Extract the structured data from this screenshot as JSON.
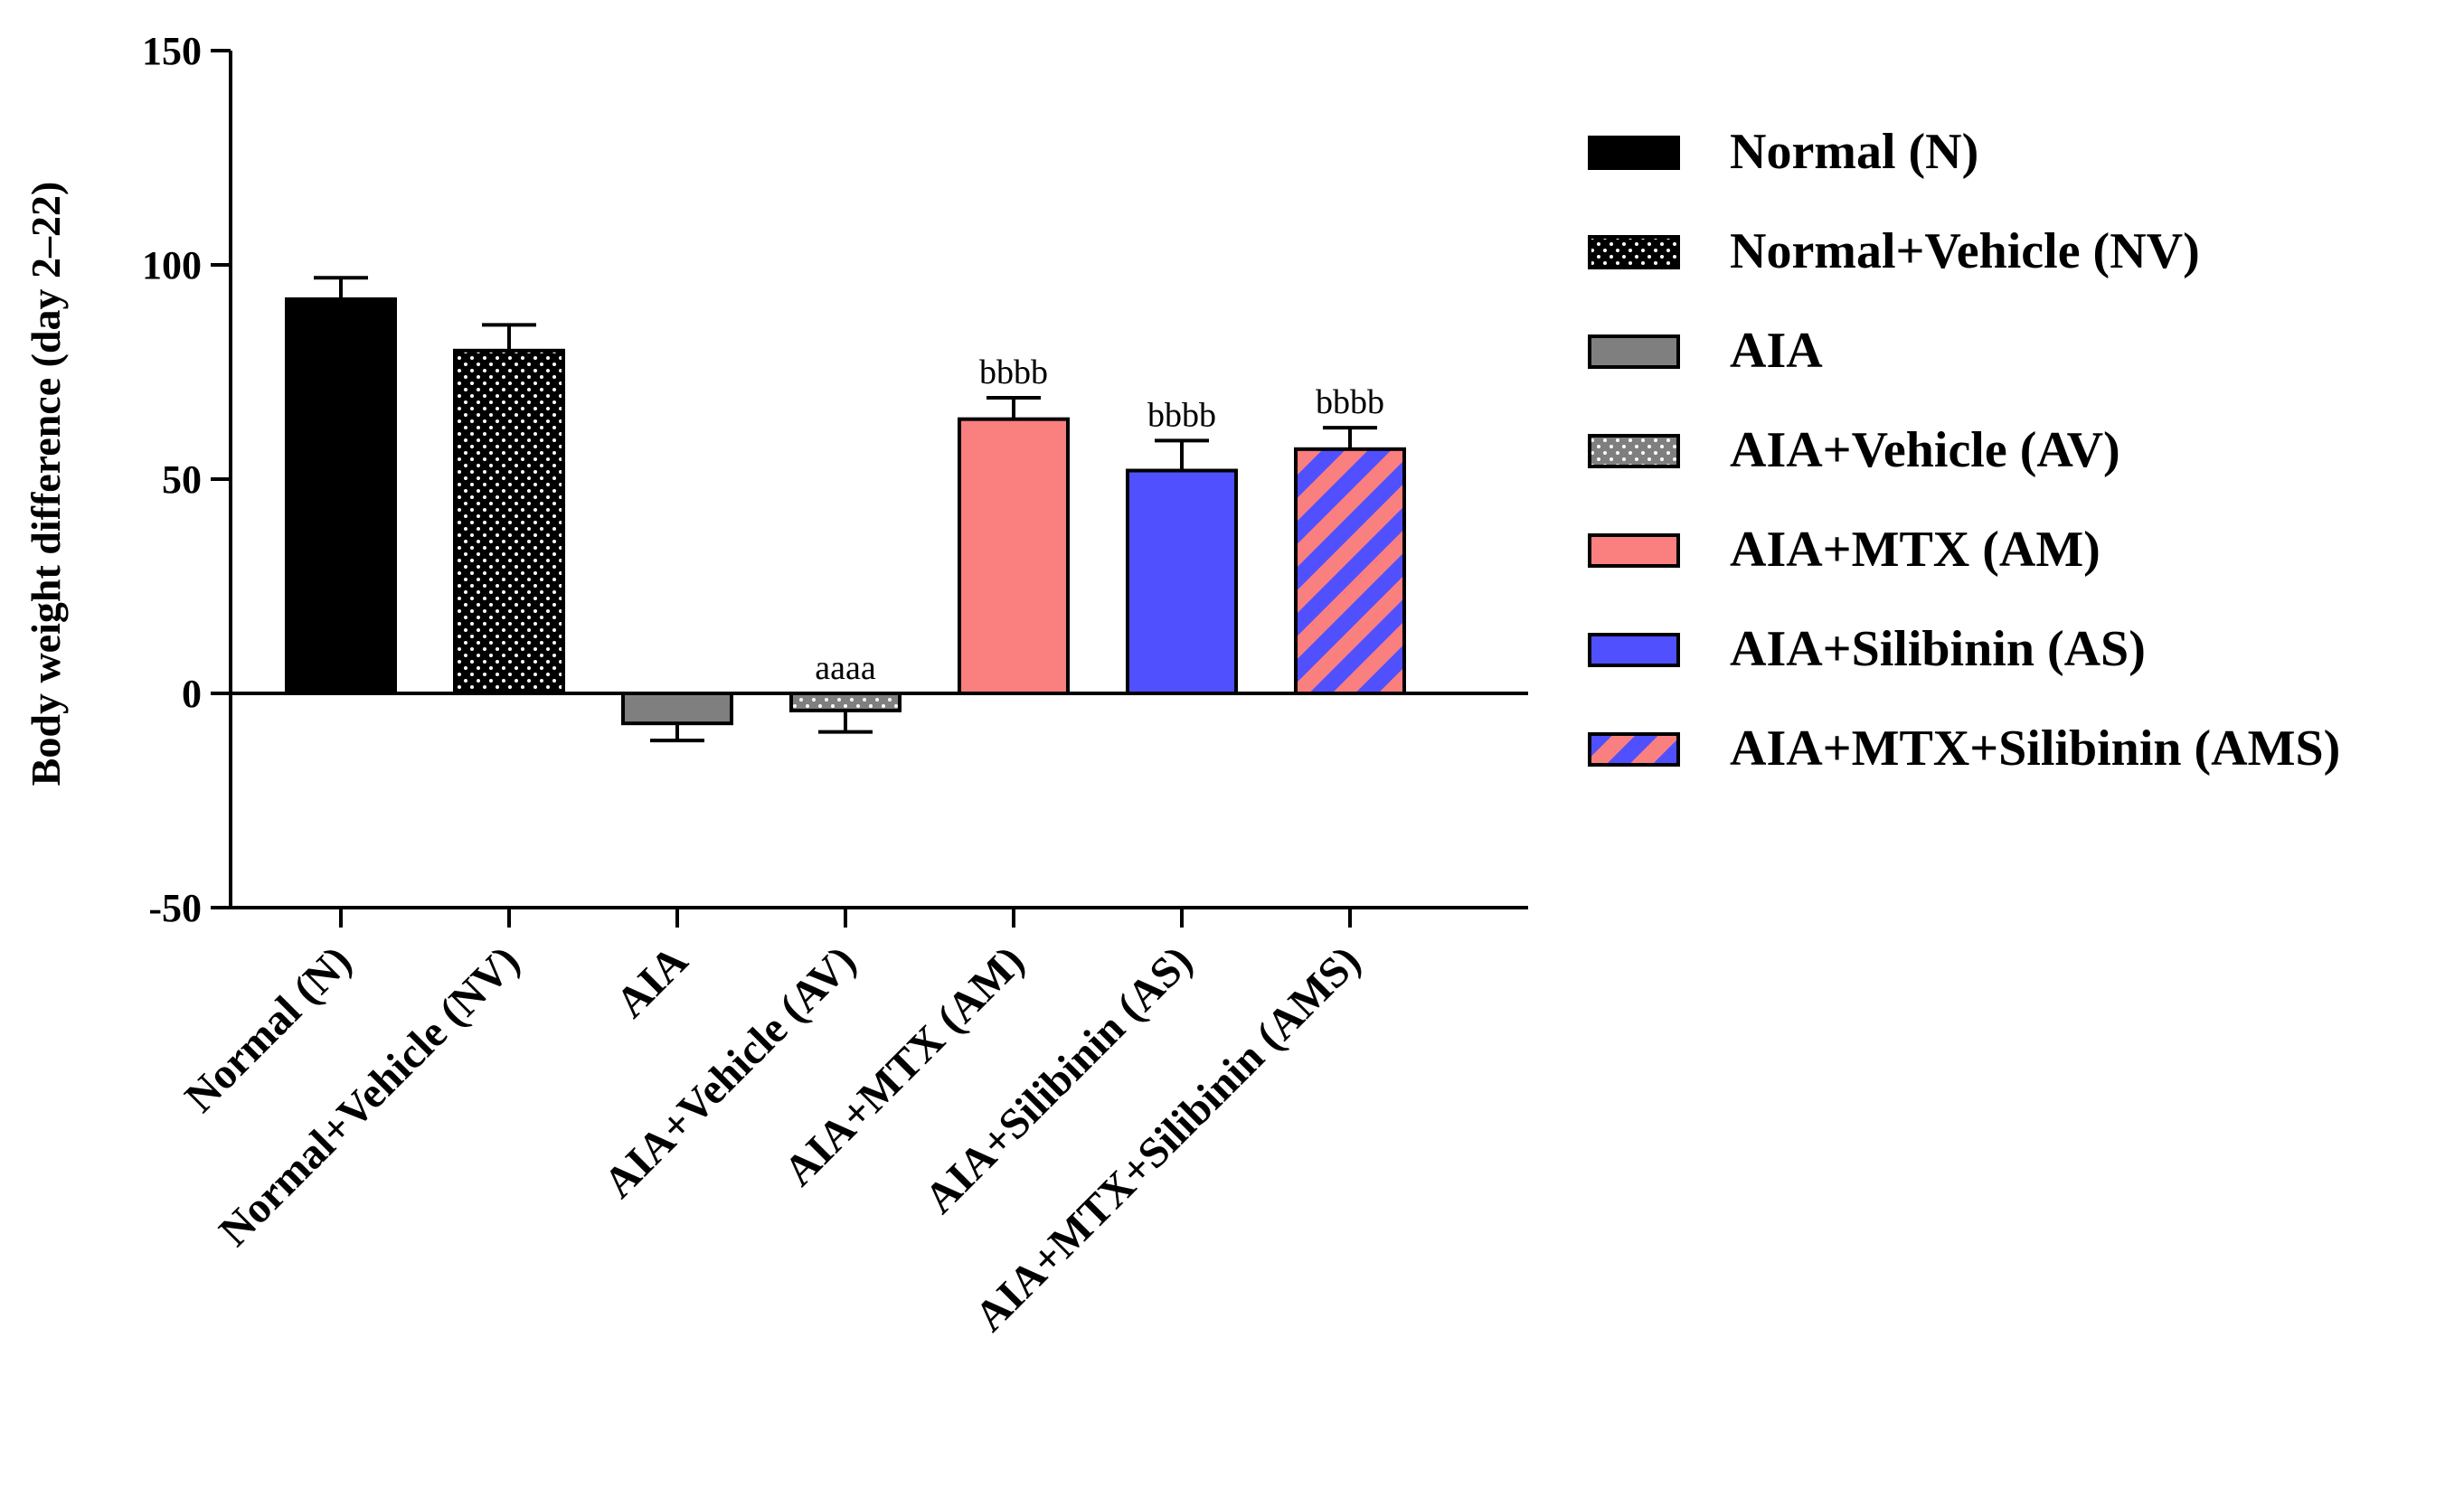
{
  "chart_data": {
    "type": "bar",
    "ylabel": "Body weight difference (day 2–22)",
    "ylim": [
      -50,
      150
    ],
    "yticks": [
      -50,
      0,
      50,
      100,
      150
    ],
    "grid": false,
    "legend_position": "right",
    "categories": [
      "Normal (N)",
      "Normal+Vehicle (NV)",
      "AIA",
      "AIA+Vehicle (AV)",
      "AIA+MTX (AM)",
      "AIA+Silibinin (AS)",
      "AIA+MTX+Silibinin (AMS)"
    ],
    "values": [
      92,
      80,
      -7,
      -4,
      64,
      52,
      57
    ],
    "errors": [
      5,
      6,
      4,
      5,
      5,
      7,
      5
    ],
    "annotations": [
      "",
      "",
      "",
      "aaaa",
      "bbbb",
      "bbbb",
      "bbbb"
    ],
    "fills": [
      "black",
      "dotted-black",
      "grey",
      "dotted-grey",
      "salmon",
      "blue",
      "striped-blue-salmon"
    ],
    "colors": {
      "black": "#000000",
      "grey": "#7f7f7f",
      "salmon": "#fa7f7f",
      "blue": "#5050ff",
      "dot": "#ffffff"
    },
    "legend": [
      "Normal (N)",
      "Normal+Vehicle (NV)",
      "AIA",
      "AIA+Vehicle (AV)",
      "AIA+MTX (AM)",
      "AIA+Silibinin (AS)",
      "AIA+MTX+Silibinin (AMS)"
    ]
  }
}
